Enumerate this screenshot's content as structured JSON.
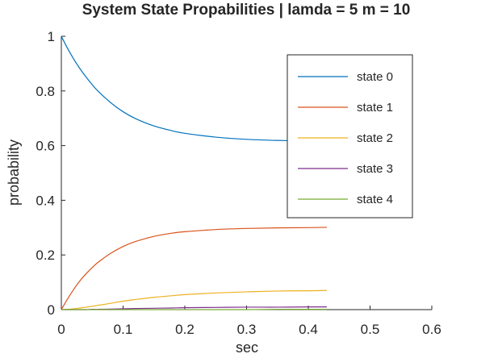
{
  "chart_data": {
    "type": "line",
    "title": "System State Propabilities | lamda = 5 m = 10",
    "xlabel": "sec",
    "ylabel": "probability",
    "xlim": [
      0,
      0.6
    ],
    "ylim": [
      0,
      1
    ],
    "xticks": [
      "0",
      "0.1",
      "0.2",
      "0.3",
      "0.4",
      "0.5",
      "0.6"
    ],
    "yticks": [
      "0",
      "0.2",
      "0.4",
      "0.6",
      "0.8",
      "1"
    ],
    "grid": false,
    "legend_position": "top-right",
    "x": [
      0,
      0.01,
      0.02,
      0.03,
      0.04,
      0.05,
      0.06,
      0.08,
      0.1,
      0.12,
      0.15,
      0.18,
      0.2,
      0.25,
      0.3,
      0.35,
      0.4,
      0.43
    ],
    "series": [
      {
        "name": "state 0",
        "color": "#0072BD",
        "values": [
          1.0,
          0.956,
          0.917,
          0.882,
          0.851,
          0.823,
          0.798,
          0.757,
          0.724,
          0.699,
          0.672,
          0.654,
          0.645,
          0.631,
          0.623,
          0.619,
          0.617,
          0.616
        ]
      },
      {
        "name": "state 1",
        "color": "#D95319",
        "values": [
          0.0,
          0.039,
          0.074,
          0.105,
          0.131,
          0.154,
          0.174,
          0.206,
          0.231,
          0.249,
          0.268,
          0.28,
          0.285,
          0.293,
          0.297,
          0.299,
          0.3,
          0.301
        ]
      },
      {
        "name": "state 2",
        "color": "#EDB120",
        "values": [
          0.0,
          0.001,
          0.003,
          0.006,
          0.009,
          0.012,
          0.016,
          0.023,
          0.031,
          0.037,
          0.045,
          0.051,
          0.055,
          0.061,
          0.065,
          0.068,
          0.069,
          0.07
        ]
      },
      {
        "name": "state 3",
        "color": "#7E2F8E",
        "values": [
          0.0,
          0.0,
          0.0,
          0.0,
          0.0,
          0.001,
          0.001,
          0.002,
          0.003,
          0.004,
          0.005,
          0.006,
          0.007,
          0.008,
          0.009,
          0.009,
          0.01,
          0.01
        ]
      },
      {
        "name": "state 4",
        "color": "#77AC30",
        "values": [
          0.0,
          0.0,
          0.0,
          0.0,
          0.0,
          0.0,
          0.0,
          0.0,
          0.0,
          0.0,
          0.0,
          0.0,
          0.0,
          0.0,
          0.0,
          0.001,
          0.001,
          0.001
        ]
      }
    ]
  }
}
